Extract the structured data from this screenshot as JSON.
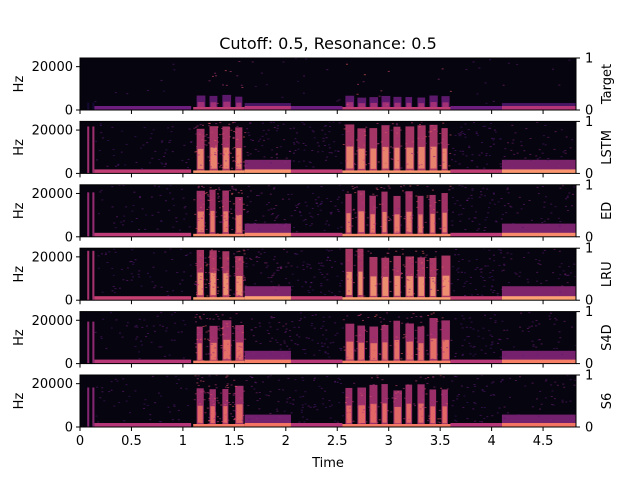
{
  "chart_data": {
    "type": "heatmap",
    "title": "Cutoff: 0.5, Resonance: 0.5",
    "xlabel": "Time",
    "ylabel": "Hz",
    "xlim": [
      0,
      4.82
    ],
    "ylim": [
      0,
      24000
    ],
    "x_ticks": [
      "0",
      "0.5",
      "1",
      "1.5",
      "2",
      "2.5",
      "3",
      "3.5",
      "4",
      "4.5"
    ],
    "x_tick_values": [
      0,
      0.5,
      1,
      1.5,
      2,
      2.5,
      3,
      3.5,
      4,
      4.5
    ],
    "y_ticks": [
      "0",
      "20000"
    ],
    "y_tick_values": [
      0,
      20000
    ],
    "right_axis_ticks": [
      "0",
      "1"
    ],
    "colormap": "magma",
    "panels": [
      {
        "name": "Target",
        "intensity": 0.12
      },
      {
        "name": "LSTM",
        "intensity": 0.95
      },
      {
        "name": "ED",
        "intensity": 0.9
      },
      {
        "name": "LRU",
        "intensity": 1.0
      },
      {
        "name": "S4D",
        "intensity": 0.85
      },
      {
        "name": "S6",
        "intensity": 0.8
      }
    ],
    "segments": [
      {
        "x0": 0.07,
        "x1": 0.09,
        "kind": "click"
      },
      {
        "x0": 0.12,
        "x1": 0.14,
        "kind": "click"
      },
      {
        "x0": 0.14,
        "x1": 1.08,
        "kind": "low"
      },
      {
        "x0": 1.1,
        "x1": 1.6,
        "kind": "burst"
      },
      {
        "x0": 1.6,
        "x1": 2.05,
        "kind": "tone"
      },
      {
        "x0": 2.05,
        "x1": 2.55,
        "kind": "low"
      },
      {
        "x0": 2.55,
        "x1": 3.6,
        "kind": "burst"
      },
      {
        "x0": 3.6,
        "x1": 4.1,
        "kind": "low"
      },
      {
        "x0": 4.1,
        "x1": 4.82,
        "kind": "tone"
      }
    ]
  }
}
